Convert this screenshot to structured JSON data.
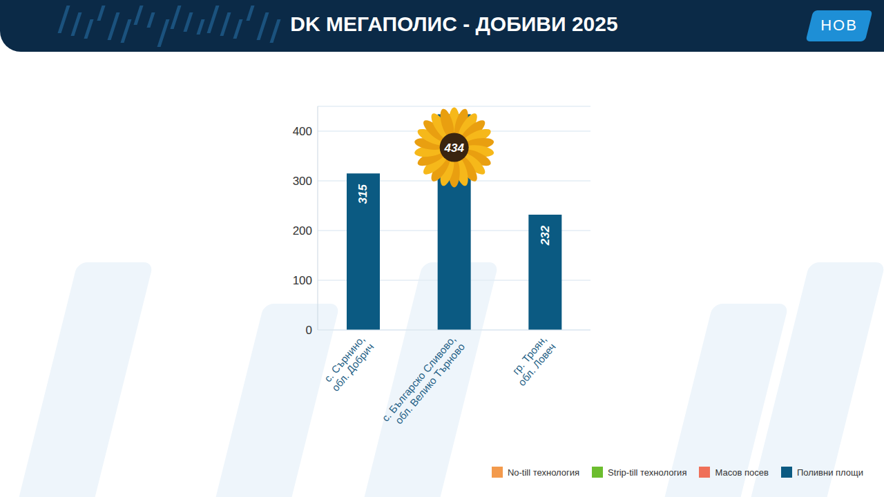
{
  "logo": "НОВ",
  "chart_data": {
    "type": "bar",
    "title": "DK МЕГАПОЛИС - ДОБИВИ 2025",
    "categories": [
      "с. Сърнино, обл. Добрич",
      "с. Българско Сливово, обл. Велико Търново",
      "гр. Троян, обл. Ловеч"
    ],
    "series": [
      {
        "name": "No-till технология",
        "color": "#f39a4c",
        "values": [
          null,
          null,
          null
        ]
      },
      {
        "name": "Strip-till технология",
        "color": "#6cbd2e",
        "values": [
          null,
          null,
          null
        ]
      },
      {
        "name": "Масов посев",
        "color": "#ef7059",
        "values": [
          null,
          null,
          null
        ]
      },
      {
        "name": "Поливни площи",
        "color": "#0b5a82",
        "values": [
          315,
          434,
          232
        ]
      }
    ],
    "ylim": [
      0,
      450
    ],
    "yticks": [
      0,
      100,
      200,
      300,
      400
    ],
    "grid": true,
    "data_labels": true,
    "legend": "bottom-right"
  }
}
